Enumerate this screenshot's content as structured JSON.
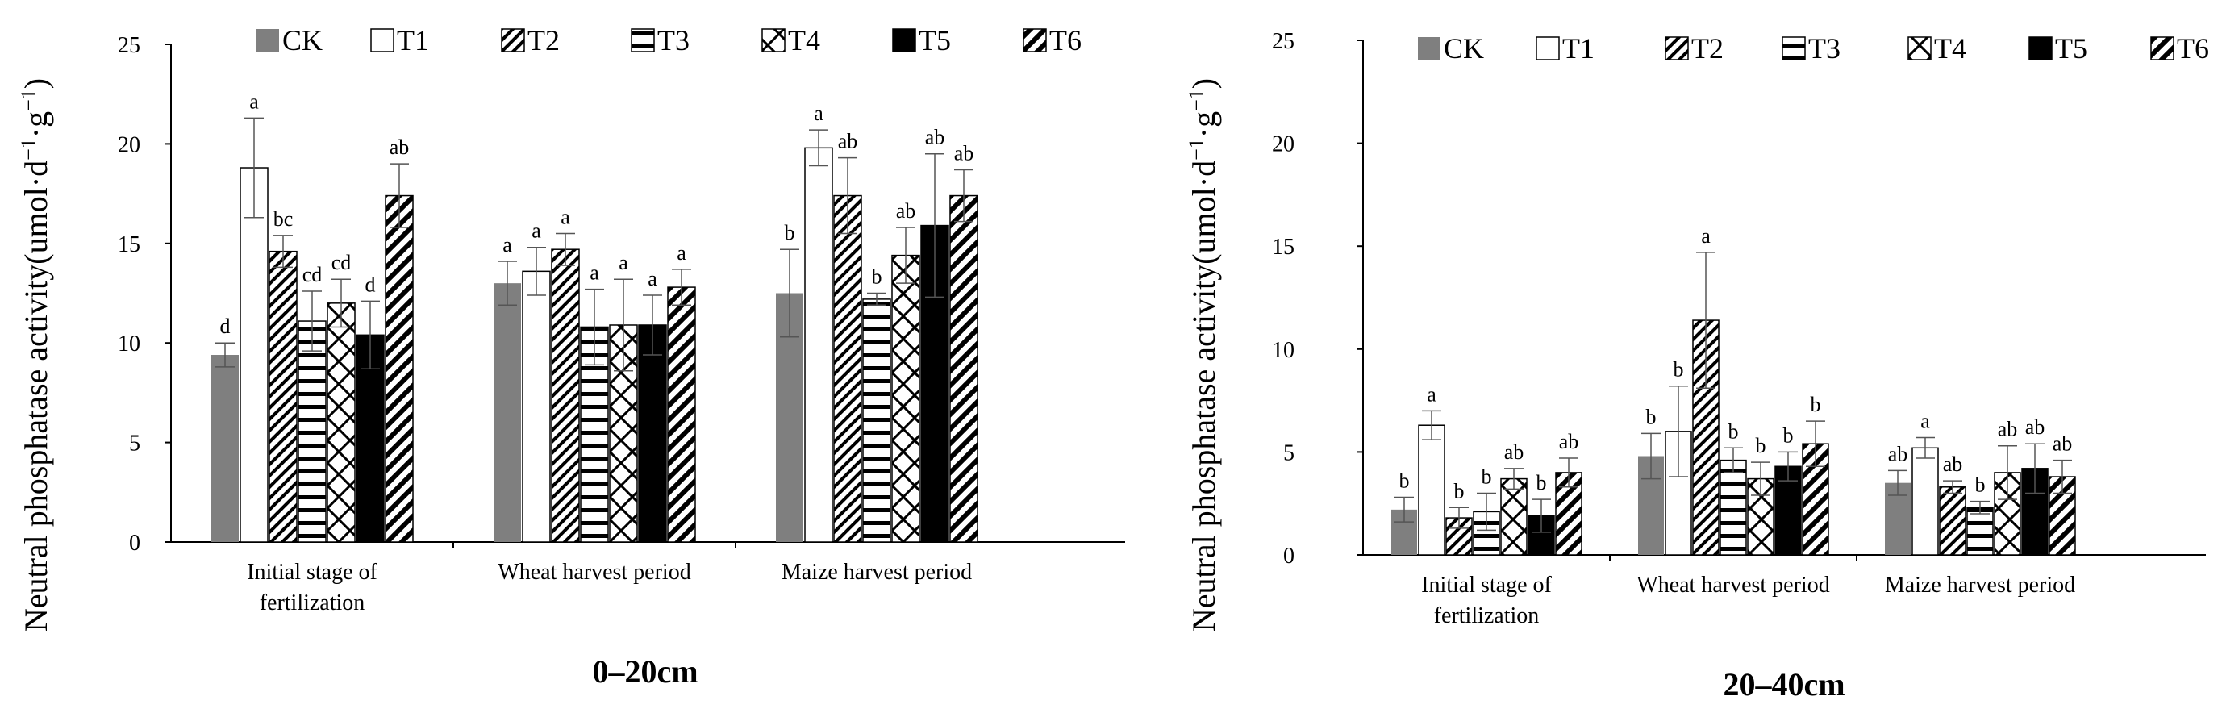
{
  "legend_labels": [
    "CK",
    "T1",
    "T2",
    "T3",
    "T4",
    "T5",
    "T6"
  ],
  "chart_data": [
    {
      "type": "bar",
      "title": "0–20cm",
      "xlabel": "",
      "ylabel": "Neutral phosphatase activity(umol·d",
      "ylabel_sup1": "−1",
      "ylabel_mid": "·g",
      "ylabel_sup2": "−1",
      "ylabel_end": ")",
      "ylim": [
        0,
        25
      ],
      "yticks": [
        0,
        5,
        10,
        15,
        20,
        25
      ],
      "categories": [
        [
          "Initial stage of",
          "fertilization"
        ],
        [
          "Wheat harvest period"
        ],
        [
          "Maize harvest period"
        ]
      ],
      "series": [
        {
          "name": "CK",
          "values": [
            9.4,
            13.0,
            12.5
          ],
          "errors": [
            0.6,
            1.1,
            2.2
          ],
          "letters": [
            "d",
            "a",
            "b"
          ]
        },
        {
          "name": "T1",
          "values": [
            18.8,
            13.6,
            19.8
          ],
          "errors": [
            2.5,
            1.2,
            0.9
          ],
          "letters": [
            "a",
            "a",
            "a"
          ]
        },
        {
          "name": "T2",
          "values": [
            14.6,
            14.7,
            17.4
          ],
          "errors": [
            0.8,
            0.8,
            1.9
          ],
          "letters": [
            "bc",
            "a",
            "ab"
          ]
        },
        {
          "name": "T3",
          "values": [
            11.1,
            10.8,
            12.2
          ],
          "errors": [
            1.5,
            1.9,
            0.3
          ],
          "letters": [
            "cd",
            "a",
            "b"
          ]
        },
        {
          "name": "T4",
          "values": [
            12.0,
            10.9,
            14.4
          ],
          "errors": [
            1.2,
            2.3,
            1.4
          ],
          "letters": [
            "cd",
            "a",
            "ab"
          ]
        },
        {
          "name": "T5",
          "values": [
            10.4,
            10.9,
            15.9
          ],
          "errors": [
            1.7,
            1.5,
            3.6
          ],
          "letters": [
            "d",
            "a",
            "ab"
          ]
        },
        {
          "name": "T6",
          "values": [
            17.4,
            12.8,
            17.4
          ],
          "errors": [
            1.6,
            0.9,
            1.3
          ],
          "letters": [
            "ab",
            "a",
            "ab"
          ]
        }
      ]
    },
    {
      "type": "bar",
      "title": "20–40cm",
      "xlabel": "",
      "ylabel": "Neutral phosphatase activity(umol·d",
      "ylabel_sup1": "−1",
      "ylabel_mid": "·g",
      "ylabel_sup2": "−1",
      "ylabel_end": ")",
      "ylim": [
        0,
        25
      ],
      "yticks": [
        0,
        5,
        10,
        15,
        20,
        25
      ],
      "categories": [
        [
          "Initial stage of",
          "fertilization"
        ],
        [
          "Wheat harvest period"
        ],
        [
          "Maize harvest period"
        ]
      ],
      "series": [
        {
          "name": "CK",
          "values": [
            2.2,
            4.8,
            3.5
          ],
          "errors": [
            0.6,
            1.1,
            0.6
          ],
          "letters": [
            "b",
            "b",
            "ab"
          ]
        },
        {
          "name": "T1",
          "values": [
            6.3,
            6.0,
            5.2
          ],
          "errors": [
            0.7,
            2.2,
            0.5
          ],
          "letters": [
            "a",
            "b",
            "a"
          ]
        },
        {
          "name": "T2",
          "values": [
            1.8,
            11.4,
            3.3
          ],
          "errors": [
            0.5,
            3.3,
            0.3
          ],
          "letters": [
            "b",
            "a",
            "ab"
          ]
        },
        {
          "name": "T3",
          "values": [
            2.1,
            4.6,
            2.3
          ],
          "errors": [
            0.9,
            0.6,
            0.3
          ],
          "letters": [
            "b",
            "b",
            "b"
          ]
        },
        {
          "name": "T4",
          "values": [
            3.7,
            3.7,
            4.0
          ],
          "errors": [
            0.5,
            0.8,
            1.3
          ],
          "letters": [
            "ab",
            "b",
            "ab"
          ]
        },
        {
          "name": "T5",
          "values": [
            1.9,
            4.3,
            4.2
          ],
          "errors": [
            0.8,
            0.7,
            1.2
          ],
          "letters": [
            "b",
            "b",
            "ab"
          ]
        },
        {
          "name": "T6",
          "values": [
            4.0,
            5.4,
            3.8
          ],
          "errors": [
            0.7,
            1.1,
            0.8
          ],
          "letters": [
            "ab",
            "b",
            "ab"
          ]
        }
      ]
    }
  ]
}
